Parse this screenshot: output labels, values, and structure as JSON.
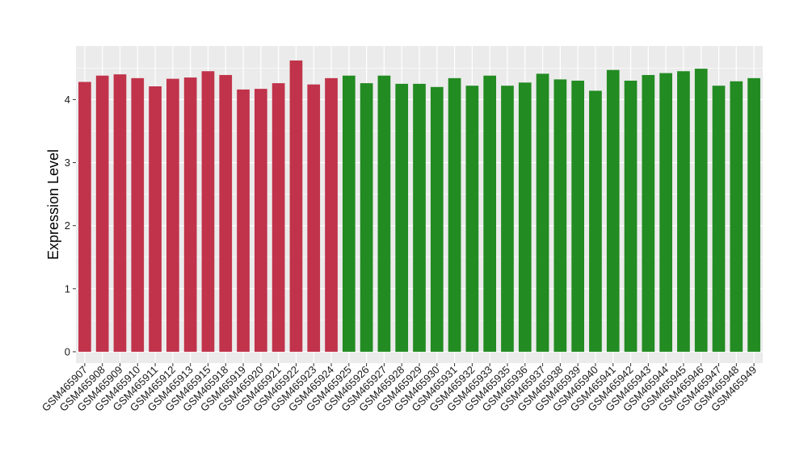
{
  "chart_data": {
    "type": "bar",
    "title": "",
    "xlabel": "",
    "ylabel": "Expression Level",
    "ylim": [
      -0.18,
      4.85
    ],
    "yticks": [
      0,
      1,
      2,
      3,
      4
    ],
    "grid": true,
    "legend": "none",
    "panel_background": "#ebebeb",
    "grid_color": "#ffffff",
    "group_colors": {
      "group1": "#c0334b",
      "group2": "#228b22"
    },
    "categories": [
      "GSM465907",
      "GSM465908",
      "GSM465909",
      "GSM465910",
      "GSM465911",
      "GSM465912",
      "GSM465913",
      "GSM465915",
      "GSM465918",
      "GSM465919",
      "GSM465920",
      "GSM465921",
      "GSM465922",
      "GSM465923",
      "GSM465924",
      "GSM465925",
      "GSM465926",
      "GSM465927",
      "GSM465928",
      "GSM465929",
      "GSM465930",
      "GSM465931",
      "GSM465932",
      "GSM465933",
      "GSM465935",
      "GSM465936",
      "GSM465937",
      "GSM465938",
      "GSM465939",
      "GSM465940",
      "GSM465941",
      "GSM465942",
      "GSM465943",
      "GSM465944",
      "GSM465945",
      "GSM465946",
      "GSM465947",
      "GSM465948",
      "GSM465949"
    ],
    "values": [
      4.28,
      4.38,
      4.4,
      4.34,
      4.21,
      4.33,
      4.35,
      4.45,
      4.39,
      4.16,
      4.17,
      4.26,
      4.62,
      4.24,
      4.34,
      4.38,
      4.26,
      4.38,
      4.25,
      4.25,
      4.2,
      4.34,
      4.22,
      4.38,
      4.22,
      4.27,
      4.41,
      4.32,
      4.3,
      4.14,
      4.47,
      4.3,
      4.39,
      4.42,
      4.45,
      4.49,
      4.22,
      4.29,
      4.34
    ],
    "groups": [
      "group1",
      "group1",
      "group1",
      "group1",
      "group1",
      "group1",
      "group1",
      "group1",
      "group1",
      "group1",
      "group1",
      "group1",
      "group1",
      "group1",
      "group1",
      "group2",
      "group2",
      "group2",
      "group2",
      "group2",
      "group2",
      "group2",
      "group2",
      "group2",
      "group2",
      "group2",
      "group2",
      "group2",
      "group2",
      "group2",
      "group2",
      "group2",
      "group2",
      "group2",
      "group2",
      "group2",
      "group2",
      "group2",
      "group2"
    ]
  }
}
